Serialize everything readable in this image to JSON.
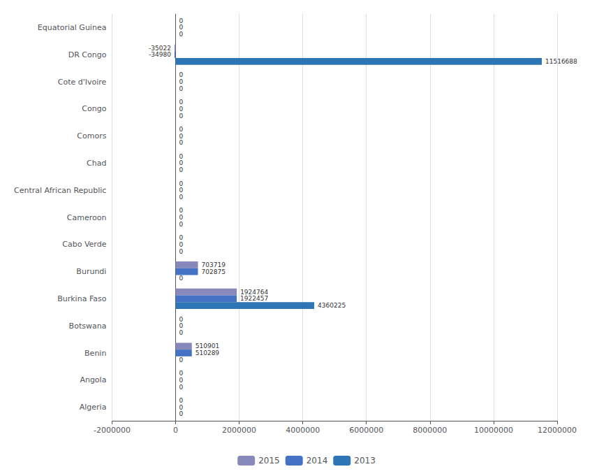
{
  "chart_data": {
    "type": "bar",
    "orientation": "horizontal",
    "categories": [
      "Algeria",
      "Angola",
      "Benin",
      "Botswana",
      "Burkina Faso",
      "Burundi",
      "Cabo Verde",
      "Cameroon",
      "Central African Republic",
      "Chad",
      "Comors",
      "Congo",
      "Cote d'Ivoire",
      "DR Congo",
      "Equatorial Guinea"
    ],
    "series": [
      {
        "name": "2015",
        "color": "#8888bb",
        "values": [
          0,
          0,
          510901,
          0,
          1924764,
          703719,
          0,
          0,
          0,
          0,
          0,
          0,
          0,
          -35022,
          0
        ]
      },
      {
        "name": "2014",
        "color": "#4472c4",
        "values": [
          0,
          0,
          510289,
          0,
          1922457,
          702875,
          0,
          0,
          0,
          0,
          0,
          0,
          0,
          -34980,
          0
        ]
      },
      {
        "name": "2013",
        "color": "#2e75b6",
        "values": [
          0,
          0,
          0,
          0,
          4360225,
          0,
          0,
          0,
          0,
          0,
          0,
          0,
          0,
          11516688,
          0
        ]
      }
    ],
    "xlim": [
      -2000000,
      12000000
    ],
    "xticks": [
      -2000000,
      0,
      2000000,
      4000000,
      6000000,
      8000000,
      10000000,
      12000000
    ],
    "grid": true,
    "legend": "bottom",
    "data_labels": true
  }
}
